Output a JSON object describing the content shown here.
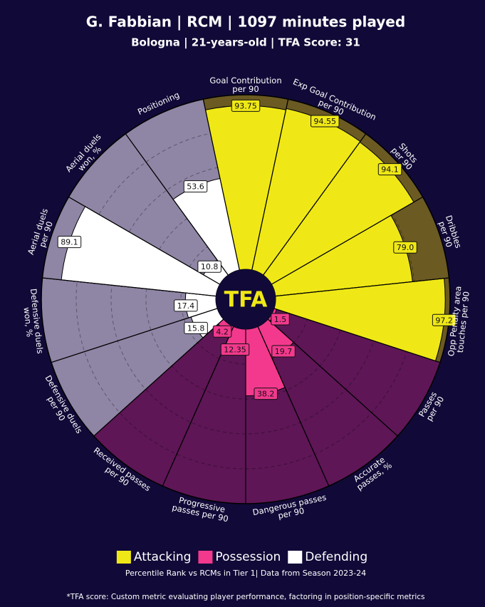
{
  "chart_data": {
    "type": "pizza",
    "title": "G. Fabbian | RCM | 1097 minutes played",
    "subtitle": "Bologna | 21-years-old | TFA Score: 31",
    "center_label": "TFA",
    "categories": [
      "Goal Contribution\nper 90",
      "Exp Goal Contribution\nper 90",
      "Shots\nper 90",
      "Dribbles\nper 90",
      "Opp Penalty area\ntouches per 90",
      "Passes\nper 90",
      "Accurate\npasses, %",
      "Dangerous passes\nper 90",
      "Progressive\npasses per 90",
      "Received passes\nper 90",
      "Defensive duels\nper 90",
      "Defensive duels\nwon, %",
      "Aerial duels\nper 90",
      "Aerial duels\nwon, %",
      "Positioning"
    ],
    "series": [
      {
        "name": "Attacking",
        "color": "#efe816",
        "background": "#6b5a22",
        "values": [
          93.75,
          94.55,
          94.1,
          79.0,
          97.2,
          null,
          null,
          null,
          null,
          null,
          null,
          null,
          null,
          null,
          null
        ],
        "value_labels": [
          "93.75",
          "94.55",
          "94.1",
          "79.0",
          "97.2",
          null,
          null,
          null,
          null,
          null,
          null,
          null,
          null,
          null,
          null
        ]
      },
      {
        "name": "Possession",
        "color": "#f2398d",
        "background": "#5e1656",
        "values": [
          null,
          null,
          null,
          null,
          null,
          1.5,
          19.7,
          38.2,
          12.35,
          4.2,
          null,
          null,
          null,
          null,
          null
        ],
        "value_labels": [
          null,
          null,
          null,
          null,
          null,
          "1.5",
          "19.7",
          "38.2",
          "12.35",
          "4.2",
          null,
          null,
          null,
          null,
          null
        ]
      },
      {
        "name": "Defending",
        "color": "#ffffff",
        "background": "#8f85a5",
        "values": [
          null,
          null,
          null,
          null,
          null,
          null,
          null,
          null,
          null,
          null,
          15.8,
          17.4,
          89.1,
          10.8,
          53.6
        ],
        "value_labels": [
          null,
          null,
          null,
          null,
          null,
          null,
          null,
          null,
          null,
          null,
          "15.8",
          "17.4",
          "89.1",
          "10.8",
          "53.6"
        ]
      }
    ],
    "ylim": [
      0,
      100
    ],
    "yticks": [
      20,
      40,
      60,
      80
    ],
    "grid": true,
    "legend": "bottom",
    "footnote": "Percentile Rank vs RCMs in Tier 1| Data from Season 2023-24",
    "footnote2": "*TFA score: Custom metric evaluating player performance, factoring in position-specific metrics"
  }
}
